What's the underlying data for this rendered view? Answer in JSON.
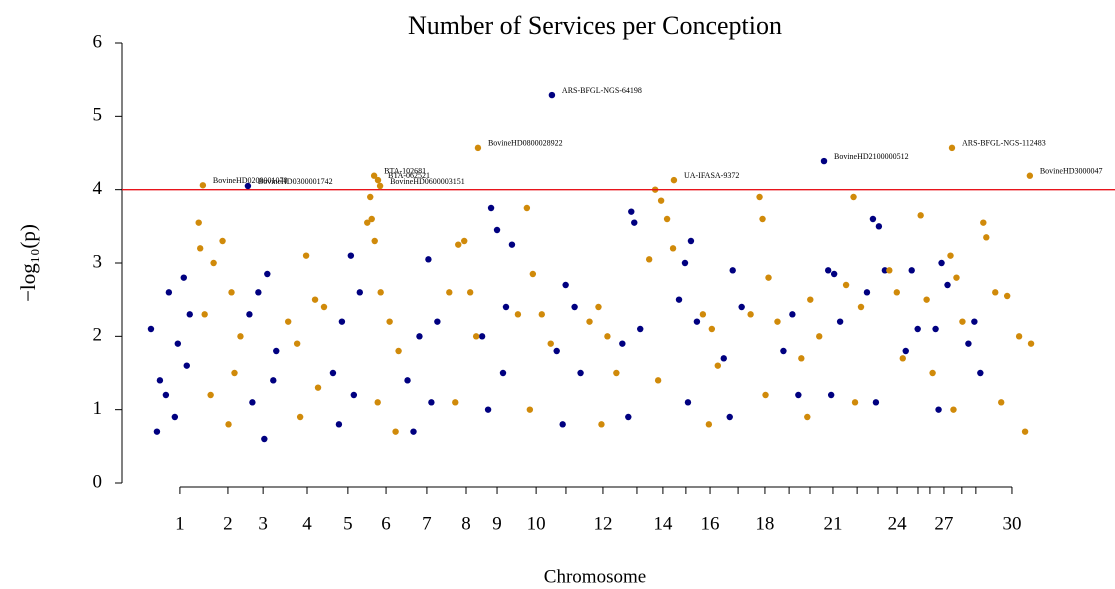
{
  "chart_data": {
    "type": "scatter",
    "title": "Number of Services per Conception",
    "x_label": "Chromosome",
    "y_label": "−log₁₀(p)",
    "xlim": [
      0,
      30
    ],
    "ylim": [
      0,
      6
    ],
    "yticks": [
      0,
      1,
      2,
      3,
      4,
      5,
      6
    ],
    "xticks": [
      {
        "value": 1.17,
        "label": "1"
      },
      {
        "value": 2.78,
        "label": "2"
      },
      {
        "value": 3.96,
        "label": "3"
      },
      {
        "value": 5.43,
        "label": "4"
      },
      {
        "value": 6.8,
        "label": "5"
      },
      {
        "value": 8.08,
        "label": "6"
      },
      {
        "value": 9.45,
        "label": "7"
      },
      {
        "value": 10.76,
        "label": "8"
      },
      {
        "value": 11.8,
        "label": "9"
      },
      {
        "value": 13.11,
        "label": "10"
      },
      {
        "value": 14.11,
        "label": null
      },
      {
        "value": 15.35,
        "label": "12"
      },
      {
        "value": 16.49,
        "label": null
      },
      {
        "value": 17.36,
        "label": "14"
      },
      {
        "value": 18.13,
        "label": null
      },
      {
        "value": 18.94,
        "label": "16"
      },
      {
        "value": 19.88,
        "label": null
      },
      {
        "value": 20.78,
        "label": "18"
      },
      {
        "value": 21.59,
        "label": null
      },
      {
        "value": 22.29,
        "label": null
      },
      {
        "value": 23.06,
        "label": "21"
      },
      {
        "value": 23.87,
        "label": null
      },
      {
        "value": 24.57,
        "label": null
      },
      {
        "value": 25.21,
        "label": "24"
      },
      {
        "value": 25.91,
        "label": null
      },
      {
        "value": 26.31,
        "label": null
      },
      {
        "value": 26.78,
        "label": "27"
      },
      {
        "value": 27.38,
        "label": null
      },
      {
        "value": 27.85,
        "label": null
      },
      {
        "value": 29.06,
        "label": "30"
      }
    ],
    "threshold": 4,
    "threshold_color": "#e8141c",
    "series": [
      {
        "color": "#000080",
        "x": [
          0.2,
          0.5,
          0.8,
          1.1,
          1.3,
          1.5,
          0.4,
          1.0,
          1.4,
          0.7,
          3.5,
          3.8,
          4.1,
          4.4,
          3.6,
          4.0,
          4.3,
          6.3,
          6.6,
          6.9,
          7.2,
          6.5,
          7.0,
          8.8,
          9.2,
          9.5,
          9.8,
          9.0,
          9.6,
          11.3,
          11.6,
          11.8,
          12.1,
          12.3,
          11.5,
          12.0,
          13.8,
          14.1,
          14.4,
          14.6,
          14.0,
          16.0,
          16.3,
          16.4,
          16.6,
          16.2,
          17.9,
          18.1,
          18.3,
          18.5,
          18.2,
          19.4,
          19.7,
          20.0,
          19.6,
          21.4,
          21.7,
          21.9,
          22.9,
          23.1,
          23.3,
          23.0,
          24.2,
          24.4,
          24.6,
          24.8,
          24.5,
          25.5,
          25.7,
          25.9,
          26.5,
          26.7,
          26.9,
          26.6,
          27.6,
          27.8,
          28.0
        ],
        "values": [
          2.1,
          1.4,
          2.6,
          1.9,
          2.8,
          2.3,
          0.7,
          0.9,
          1.6,
          1.2,
          2.3,
          2.6,
          2.85,
          1.8,
          1.1,
          0.6,
          1.4,
          1.5,
          2.2,
          3.1,
          2.6,
          0.8,
          1.2,
          1.4,
          2.0,
          3.05,
          2.2,
          0.7,
          1.1,
          2.0,
          3.75,
          3.45,
          2.4,
          3.25,
          1.0,
          1.5,
          1.8,
          2.7,
          2.4,
          1.5,
          0.8,
          1.9,
          3.7,
          3.55,
          2.1,
          0.9,
          2.5,
          3.0,
          3.3,
          2.2,
          1.1,
          1.7,
          2.9,
          2.4,
          0.9,
          1.8,
          2.3,
          1.2,
          2.9,
          2.85,
          2.2,
          1.2,
          2.6,
          3.6,
          3.5,
          2.9,
          1.1,
          1.8,
          2.9,
          2.1,
          2.1,
          3.0,
          2.7,
          1.0,
          1.9,
          2.2,
          1.5
        ]
      },
      {
        "color": "#d08a0a",
        "x": [
          1.8,
          1.85,
          2.0,
          2.3,
          2.6,
          2.9,
          3.2,
          2.2,
          2.8,
          3.0,
          4.8,
          5.1,
          5.4,
          5.7,
          6.0,
          5.2,
          5.8,
          7.45,
          7.55,
          7.6,
          7.7,
          7.9,
          8.2,
          8.5,
          7.8,
          8.4,
          10.2,
          10.5,
          10.7,
          10.9,
          11.1,
          10.4,
          12.5,
          12.8,
          13.0,
          13.3,
          13.6,
          12.9,
          14.9,
          15.2,
          15.5,
          15.8,
          15.3,
          16.9,
          17.1,
          17.3,
          17.5,
          17.7,
          17.2,
          18.7,
          19.0,
          19.2,
          18.9,
          20.3,
          20.6,
          20.7,
          20.9,
          21.2,
          20.8,
          22.0,
          22.3,
          22.6,
          22.2,
          23.5,
          23.75,
          24.0,
          23.8,
          24.95,
          25.2,
          25.4,
          26.0,
          26.2,
          26.4,
          27.0,
          27.2,
          27.4,
          27.1,
          28.1,
          28.2,
          28.5,
          28.9,
          29.3,
          29.7,
          28.7,
          29.5
        ],
        "values": [
          3.55,
          3.2,
          2.3,
          3.0,
          3.3,
          2.6,
          2.0,
          1.2,
          0.8,
          1.5,
          2.2,
          1.9,
          3.1,
          2.5,
          2.4,
          0.9,
          1.3,
          3.55,
          3.9,
          3.6,
          3.3,
          2.6,
          2.2,
          1.8,
          1.1,
          0.7,
          2.6,
          3.25,
          3.3,
          2.6,
          2.0,
          1.1,
          2.3,
          3.75,
          2.85,
          2.3,
          1.9,
          1.0,
          2.2,
          2.4,
          2.0,
          1.5,
          0.8,
          3.05,
          4.0,
          3.85,
          3.6,
          3.2,
          1.4,
          2.3,
          2.1,
          1.6,
          0.8,
          2.3,
          3.9,
          3.6,
          2.8,
          2.2,
          1.2,
          1.7,
          2.5,
          2.0,
          0.9,
          2.7,
          3.9,
          2.4,
          1.1,
          2.9,
          2.6,
          1.7,
          3.65,
          2.5,
          1.5,
          3.1,
          2.8,
          2.2,
          1.0,
          3.55,
          3.35,
          2.6,
          2.55,
          2.0,
          1.9,
          1.1,
          0.7
        ]
      }
    ],
    "annotations": [
      {
        "text": "BovineHD0200001070",
        "x": 1.94,
        "y": 4.06,
        "color": "#d08a0a"
      },
      {
        "text": "BovineHD0300001742",
        "x": 3.45,
        "y": 4.05,
        "color": "#000080"
      },
      {
        "text": "BTA-102681",
        "x": 7.68,
        "y": 4.19,
        "color": "#d08a0a"
      },
      {
        "text": "BTA-062521",
        "x": 7.81,
        "y": 4.13,
        "color": "#d08a0a"
      },
      {
        "text": "BovineHD0600003151",
        "x": 7.88,
        "y": 4.05,
        "color": "#d08a0a"
      },
      {
        "text": "BovineHD0800028922",
        "x": 11.16,
        "y": 4.57,
        "color": "#d08a0a"
      },
      {
        "text": "ARS-BFGL-NGS-64198",
        "x": 13.64,
        "y": 5.29,
        "color": "#000080"
      },
      {
        "text": "UA-IFASA-9372",
        "x": 17.73,
        "y": 4.13,
        "color": "#d08a0a"
      },
      {
        "text": "BovineHD2100000512",
        "x": 22.76,
        "y": 4.39,
        "color": "#000080"
      },
      {
        "text": "ARS-BFGL-NGS-112483",
        "x": 27.05,
        "y": 4.57,
        "color": "#d08a0a"
      },
      {
        "text": "BovineHD3000047",
        "x": 29.66,
        "y": 4.19,
        "color": "#d08a0a"
      }
    ]
  }
}
